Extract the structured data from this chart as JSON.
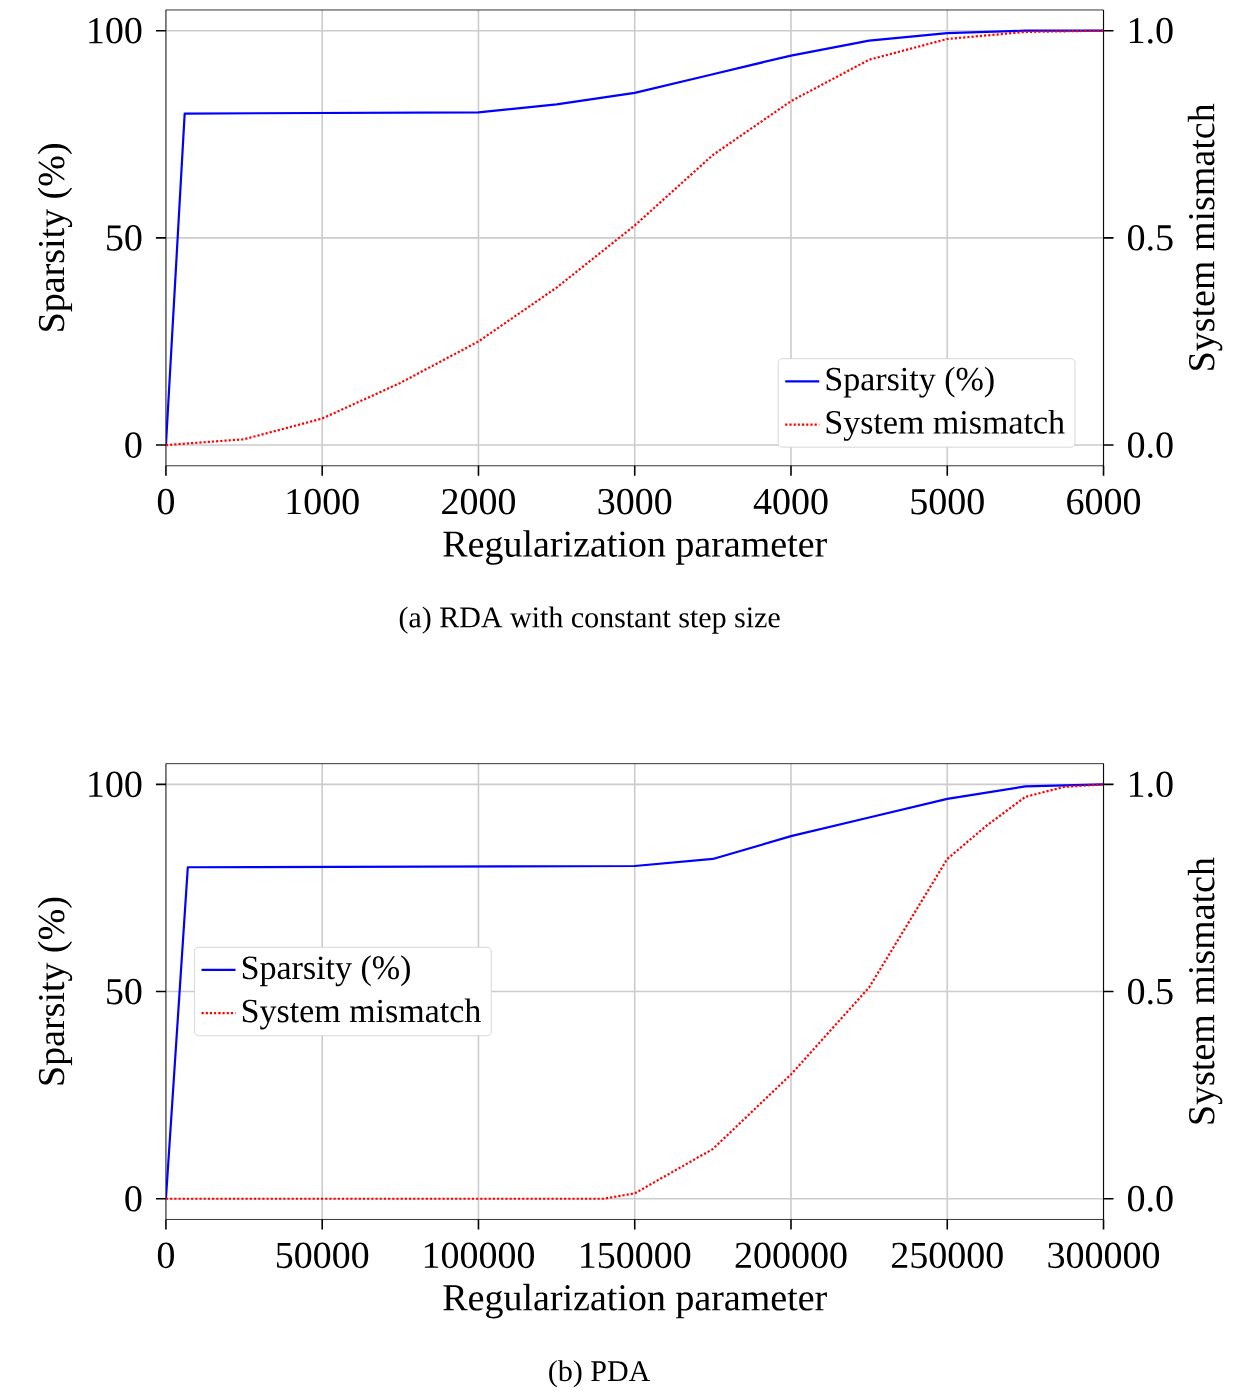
{
  "chart_data": [
    {
      "type": "line",
      "xlabel": "Regularization parameter",
      "ylabel": "Sparsity (%)",
      "y2label": "System mismatch",
      "annotations": [
        "(a) RDA with constant step size"
      ],
      "xlim": [
        0,
        6000
      ],
      "xticks": [
        0,
        1000,
        2000,
        3000,
        4000,
        5000,
        6000
      ],
      "ylim": [
        -5,
        105
      ],
      "yticks": [
        0,
        50,
        100
      ],
      "y2lim": [
        -0.05,
        1.05
      ],
      "y2ticks": [
        {
          "value": 0,
          "label": "0.0"
        },
        {
          "value": 0.5,
          "label": "0.5"
        },
        {
          "value": 1,
          "label": "1.0"
        }
      ],
      "grid": true,
      "legend": "bottom right",
      "series": [
        {
          "name": "Sparsity (%)",
          "color": "#0000ff",
          "line_style": "solid",
          "x": [
            0,
            120,
            2000,
            2500,
            3000,
            3500,
            4000,
            4500,
            5000,
            5500,
            6000
          ],
          "values": [
            0,
            80,
            80.3,
            82.2,
            85,
            89.5,
            94,
            97.6,
            99.4,
            100,
            100
          ]
        },
        {
          "name": "System mismatch",
          "color": "#ff0000",
          "line_style": "dotted",
          "axis": "y2",
          "x": [
            0,
            500,
            1000,
            1500,
            2000,
            2500,
            3000,
            3500,
            4000,
            4500,
            5000,
            5500,
            6000
          ],
          "values": [
            0,
            0.014,
            0.064,
            0.15,
            0.25,
            0.38,
            0.53,
            0.7,
            0.83,
            0.93,
            0.98,
            0.997,
            1.0
          ]
        }
      ]
    },
    {
      "type": "line",
      "xlabel": "Regularization parameter",
      "ylabel": "Sparsity (%)",
      "y2label": "System mismatch",
      "annotations": [
        "(b) PDA"
      ],
      "xlim": [
        0,
        300000
      ],
      "xticks": [
        0,
        50000,
        100000,
        150000,
        200000,
        250000,
        300000
      ],
      "ylim": [
        -5,
        105
      ],
      "yticks": [
        0,
        50,
        100
      ],
      "y2lim": [
        -0.05,
        1.05
      ],
      "y2ticks": [
        {
          "value": 0,
          "label": "0.0"
        },
        {
          "value": 0.5,
          "label": "0.5"
        },
        {
          "value": 1,
          "label": "1.0"
        }
      ],
      "grid": true,
      "legend": "center left",
      "series": [
        {
          "name": "Sparsity (%)",
          "color": "#0000ff",
          "line_style": "solid",
          "x": [
            0,
            7000,
            150000,
            175000,
            200000,
            225000,
            250000,
            275000,
            300000
          ],
          "values": [
            0,
            80,
            80.3,
            82,
            87.5,
            92,
            96.5,
            99.5,
            100
          ]
        },
        {
          "name": "System mismatch",
          "color": "#ff0000",
          "line_style": "dotted",
          "axis": "y2",
          "x": [
            0,
            140000,
            150000,
            175000,
            200000,
            225000,
            250000,
            262500,
            275000,
            287500,
            300000
          ],
          "values": [
            0,
            0,
            0.013,
            0.12,
            0.3,
            0.51,
            0.82,
            0.9,
            0.97,
            0.994,
            1.0
          ]
        }
      ]
    }
  ]
}
